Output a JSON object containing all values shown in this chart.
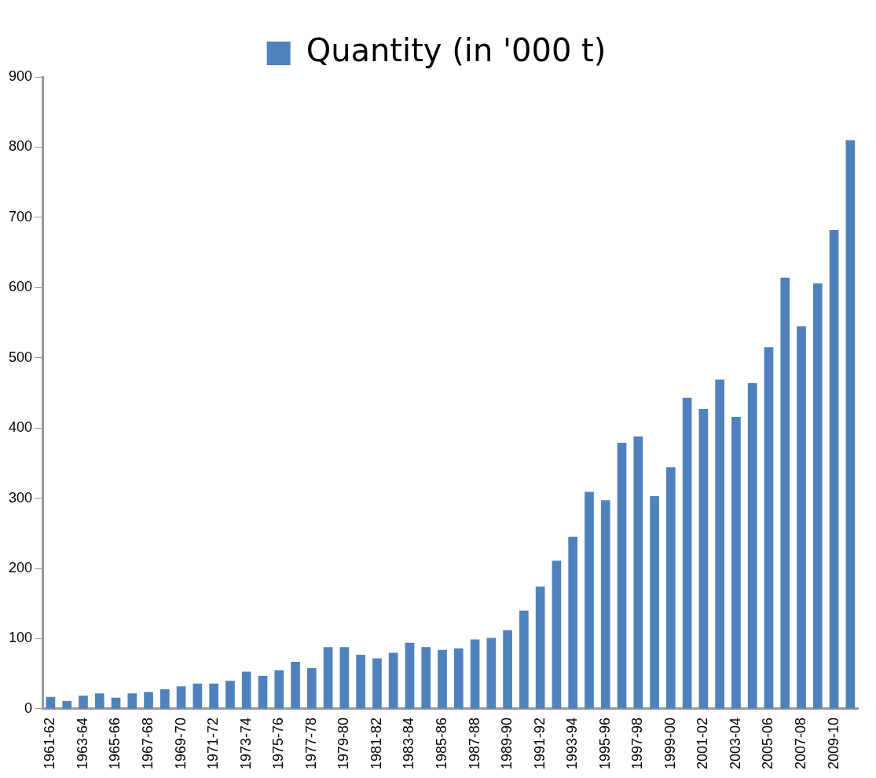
{
  "chart_data": {
    "type": "bar",
    "categories": [
      "1961-62",
      null,
      "1963-64",
      null,
      "1965-66",
      null,
      "1967-68",
      null,
      "1969-70",
      null,
      "1971-72",
      null,
      "1973-74",
      null,
      "1975-76",
      null,
      "1977-78",
      null,
      "1979-80",
      null,
      "1981-82",
      null,
      "1983-84",
      null,
      "1985-86",
      null,
      "1987-88",
      null,
      "1989-90",
      null,
      "1991-92",
      null,
      "1993-94",
      null,
      "1995-96",
      null,
      "1997-98",
      null,
      "1999-00",
      null,
      "2001-02",
      null,
      "2003-04",
      null,
      "2005-06",
      null,
      "2007-08",
      null,
      "2009-10",
      null
    ],
    "series": [
      {
        "name": "Quantity (in '000 t)",
        "color": "#4f81bd",
        "values": [
          17,
          11,
          19,
          22,
          16,
          22,
          24,
          28,
          32,
          36,
          36,
          40,
          53,
          47,
          55,
          67,
          58,
          88,
          88,
          77,
          72,
          80,
          94,
          88,
          84,
          86,
          99,
          101,
          112,
          140,
          174,
          211,
          245,
          309,
          297,
          379,
          388,
          303,
          344,
          443,
          427,
          469,
          416,
          464,
          515,
          614,
          545,
          606,
          682,
          810
        ]
      }
    ],
    "ylim": [
      0,
      900
    ],
    "yticks": [
      0,
      100,
      200,
      300,
      400,
      500,
      600,
      700,
      800,
      900
    ],
    "grid": false,
    "legend": "top"
  }
}
